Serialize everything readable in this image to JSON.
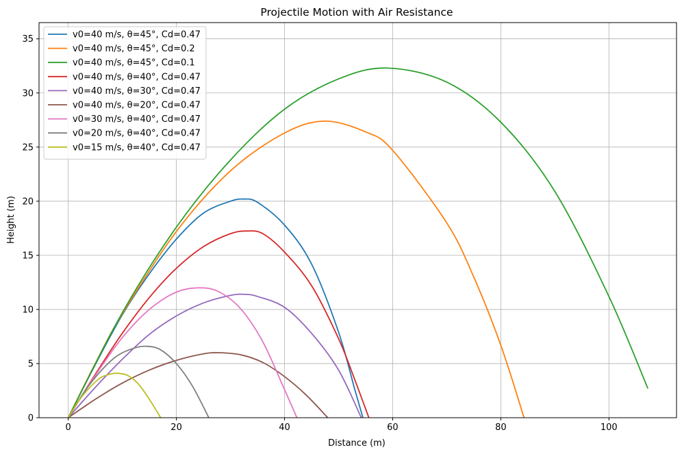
{
  "chart_data": {
    "type": "line",
    "title": "Projectile Motion with Air Resistance",
    "xlabel": "Distance (m)",
    "ylabel": "Height (m)",
    "xlim": [
      -5.4,
      112.5
    ],
    "ylim": [
      0,
      36.5
    ],
    "xticks": [
      0,
      20,
      40,
      60,
      80,
      100
    ],
    "yticks": [
      0,
      5,
      10,
      15,
      20,
      25,
      30,
      35
    ],
    "grid": true,
    "legend_position": "upper-left",
    "series": [
      {
        "name": "v0=40 m/s, θ=45°, Cd=0.47",
        "color": "#1f77b4",
        "x": [
          0,
          5,
          10,
          15,
          20,
          25,
          30,
          32.5,
          35,
          40,
          45,
          50,
          53,
          54.5
        ],
        "y": [
          0,
          4.9,
          9.5,
          13.3,
          16.5,
          18.9,
          20.0,
          20.2,
          19.9,
          17.8,
          14.2,
          7.9,
          2.6,
          0
        ]
      },
      {
        "name": "v0=40 m/s, θ=45°, Cd=0.2",
        "color": "#ff7f0e",
        "x": [
          0,
          5,
          10,
          20,
          30,
          40,
          47.5,
          55,
          60,
          70,
          75,
          80,
          84.3
        ],
        "y": [
          0,
          5.0,
          9.6,
          17.2,
          22.8,
          26.3,
          27.4,
          26.4,
          24.7,
          18.0,
          13.0,
          6.7,
          0
        ]
      },
      {
        "name": "v0=40 m/s, θ=45°, Cd=0.1",
        "color": "#2ca02c",
        "x": [
          0,
          10,
          20,
          30,
          40,
          50,
          59,
          70,
          80,
          90,
          100,
          107.2
        ],
        "y": [
          0,
          9.7,
          17.6,
          23.8,
          28.5,
          31.3,
          32.3,
          31.0,
          27.3,
          20.9,
          11.2,
          2.7
        ]
      },
      {
        "name": "v0=40 m/s, θ=40°, Cd=0.47",
        "color": "#d62728",
        "x": [
          0,
          5,
          10,
          15,
          20,
          25,
          30,
          33.2,
          36,
          40,
          45,
          50,
          53,
          55.6
        ],
        "y": [
          0,
          4.0,
          7.8,
          11.1,
          13.8,
          15.8,
          17.0,
          17.25,
          17.0,
          15.3,
          12.2,
          7.3,
          3.5,
          0
        ]
      },
      {
        "name": "v0=40 m/s, θ=30°, Cd=0.47",
        "color": "#9467bd",
        "x": [
          0,
          5,
          10,
          15,
          20,
          25,
          30,
          32.5,
          35,
          40,
          45,
          50,
          54.2
        ],
        "y": [
          0,
          2.8,
          5.4,
          7.7,
          9.4,
          10.6,
          11.3,
          11.4,
          11.2,
          10.2,
          7.8,
          4.4,
          0
        ]
      },
      {
        "name": "v0=40 m/s, θ=20°, Cd=0.47",
        "color": "#8c564b",
        "x": [
          0,
          5,
          10,
          15,
          20,
          25,
          28,
          32,
          36,
          40,
          44,
          48
        ],
        "y": [
          0,
          1.7,
          3.2,
          4.4,
          5.3,
          5.9,
          6.0,
          5.8,
          5.1,
          3.8,
          2.1,
          0
        ]
      },
      {
        "name": "v0=30 m/s, θ=40°, Cd=0.47",
        "color": "#e377c2",
        "x": [
          0,
          5,
          10,
          15,
          20,
          24.4,
          28,
          32,
          36,
          40,
          42.3
        ],
        "y": [
          0,
          3.9,
          7.4,
          10.0,
          11.6,
          12.0,
          11.6,
          10.0,
          7.0,
          2.6,
          0
        ]
      },
      {
        "name": "v0=20 m/s, θ=40°, Cd=0.47",
        "color": "#7f7f7f",
        "x": [
          0,
          3,
          6,
          9,
          12,
          14.4,
          17,
          20,
          23,
          26
        ],
        "y": [
          0,
          2.4,
          4.3,
          5.7,
          6.4,
          6.6,
          6.3,
          5.0,
          2.9,
          0
        ]
      },
      {
        "name": "v0=15 m/s, θ=40°, Cd=0.47",
        "color": "#bcbd22",
        "x": [
          0,
          2,
          4,
          6,
          8,
          9.2,
          11,
          13,
          15,
          17.1
        ],
        "y": [
          0,
          1.6,
          2.8,
          3.7,
          4.05,
          4.1,
          3.9,
          3.1,
          1.7,
          0
        ]
      }
    ]
  }
}
